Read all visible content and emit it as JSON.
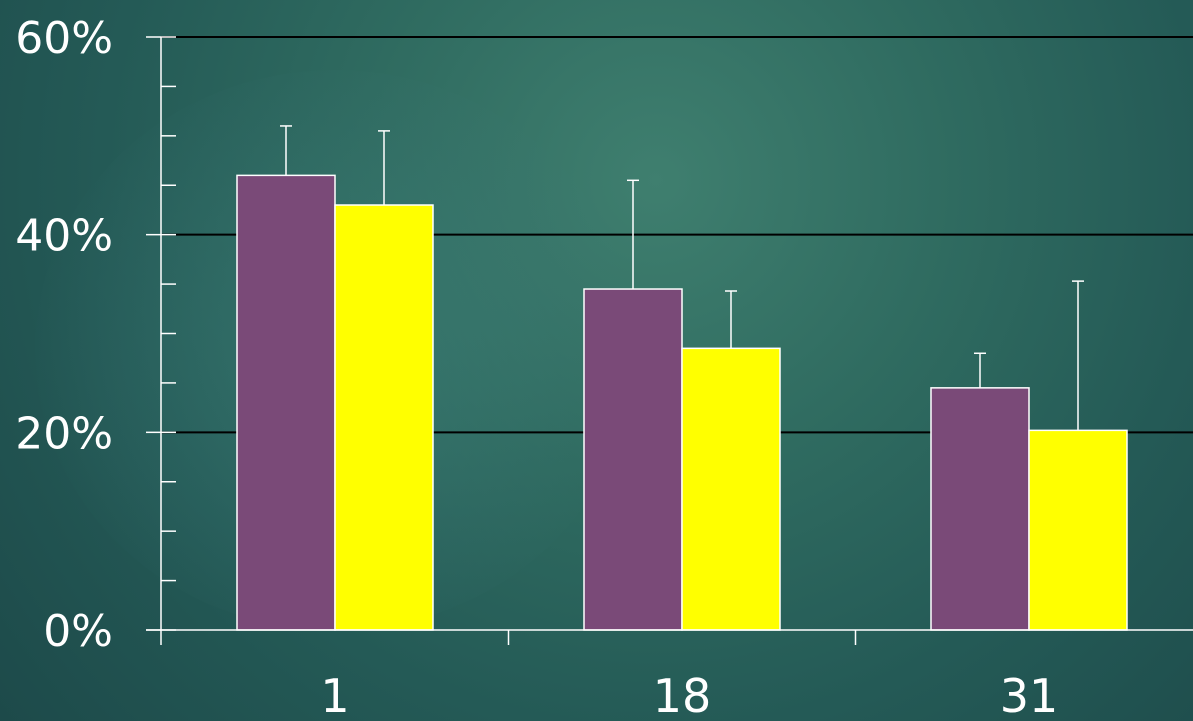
{
  "chart_data": {
    "type": "bar",
    "categories": [
      "1",
      "18",
      "31"
    ],
    "series": [
      {
        "color": "#7a4a78",
        "values": [
          46,
          34.5,
          24.5
        ],
        "error_upper": [
          51,
          45.5,
          28
        ]
      },
      {
        "color": "#ffff00",
        "values": [
          43,
          28.5,
          20.2
        ],
        "error_upper": [
          50.5,
          34.3,
          35.3
        ]
      }
    ],
    "ylim": [
      0,
      60
    ],
    "y_ticks": [
      {
        "value": 0,
        "label": "0%"
      },
      {
        "value": 20,
        "label": "20%"
      },
      {
        "value": 40,
        "label": "40%"
      },
      {
        "value": 60,
        "label": "60%"
      }
    ],
    "y_minor_step": 5,
    "grid": true,
    "title": "",
    "xlabel": "",
    "ylabel": ""
  }
}
